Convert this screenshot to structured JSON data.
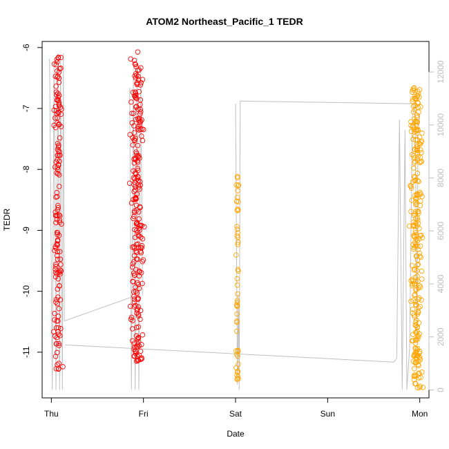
{
  "chart_data": {
    "type": "scatter",
    "title": "ATOM2 Northeast_Pacific_1 TEDR",
    "xlabel": "Date",
    "ylabel": "TEDR",
    "x_ticks": [
      "Thu",
      "Fri",
      "Sat",
      "Sun",
      "Mon"
    ],
    "x_range_days": [
      -0.1,
      4.1
    ],
    "ylim": [
      -11.75,
      -5.9
    ],
    "y_ticks": [
      -11,
      -10,
      -9,
      -8,
      -7,
      -6
    ],
    "y2lim": [
      -300,
      13150
    ],
    "y2_ticks": [
      0,
      2000,
      4000,
      6000,
      8000,
      10000,
      12000
    ],
    "y2_color": "#bdbdbd",
    "grid": false,
    "series": [
      {
        "color": "#ff0000",
        "clusters": [
          {
            "x_center": 0.07,
            "x_spread": 0.06,
            "y_min": -11.3,
            "y_max": -6.15,
            "n": 150
          },
          {
            "x_center": 0.93,
            "x_spread": 0.09,
            "y_min": -11.15,
            "y_max": -6.05,
            "n": 230
          }
        ]
      },
      {
        "color": "#ffa500",
        "clusters": [
          {
            "x_center": 2.02,
            "x_spread": 0.02,
            "y_min": -11.45,
            "y_max": -8.1,
            "n": 50
          },
          {
            "x_center": 3.96,
            "x_spread": 0.09,
            "y_min": -11.6,
            "y_max": -6.65,
            "n": 260
          }
        ]
      }
    ],
    "line_series": {
      "color": "#c0c0c0",
      "axis": "y2",
      "segments": [
        [
          [
            -0.02,
            12500
          ],
          [
            0.01,
            0
          ],
          [
            0.03,
            12400
          ],
          [
            0.05,
            0
          ],
          [
            0.07,
            12700
          ],
          [
            0.09,
            0
          ],
          [
            0.1,
            12500
          ],
          [
            0.12,
            0
          ],
          [
            0.13,
            12700
          ],
          [
            0.14,
            2600
          ]
        ],
        [
          [
            0.14,
            2600
          ],
          [
            0.95,
            3600
          ]
        ],
        [
          [
            0.85,
            11400
          ],
          [
            0.87,
            0
          ],
          [
            0.89,
            11800
          ],
          [
            0.91,
            0
          ],
          [
            0.93,
            12000
          ],
          [
            0.95,
            0
          ],
          [
            0.97,
            12200
          ],
          [
            0.99,
            3600
          ]
        ],
        [
          [
            0.15,
            1700
          ],
          [
            3.72,
            1050
          ]
        ],
        [
          [
            2.0,
            10800
          ],
          [
            2.02,
            200
          ],
          [
            2.03,
            3600
          ],
          [
            2.04,
            0
          ],
          [
            2.05,
            10900
          ],
          [
            3.95,
            10800
          ],
          [
            3.92,
            10300
          ],
          [
            3.89,
            1600
          ],
          [
            3.86,
            0
          ],
          [
            3.84,
            9800
          ],
          [
            3.81,
            0
          ],
          [
            3.78,
            10200
          ],
          [
            3.75,
            1200
          ],
          [
            3.72,
            1050
          ]
        ],
        [
          [
            3.95,
            10800
          ],
          [
            3.97,
            1800
          ],
          [
            3.98,
            9600
          ],
          [
            4.0,
            10400
          ]
        ]
      ]
    }
  }
}
